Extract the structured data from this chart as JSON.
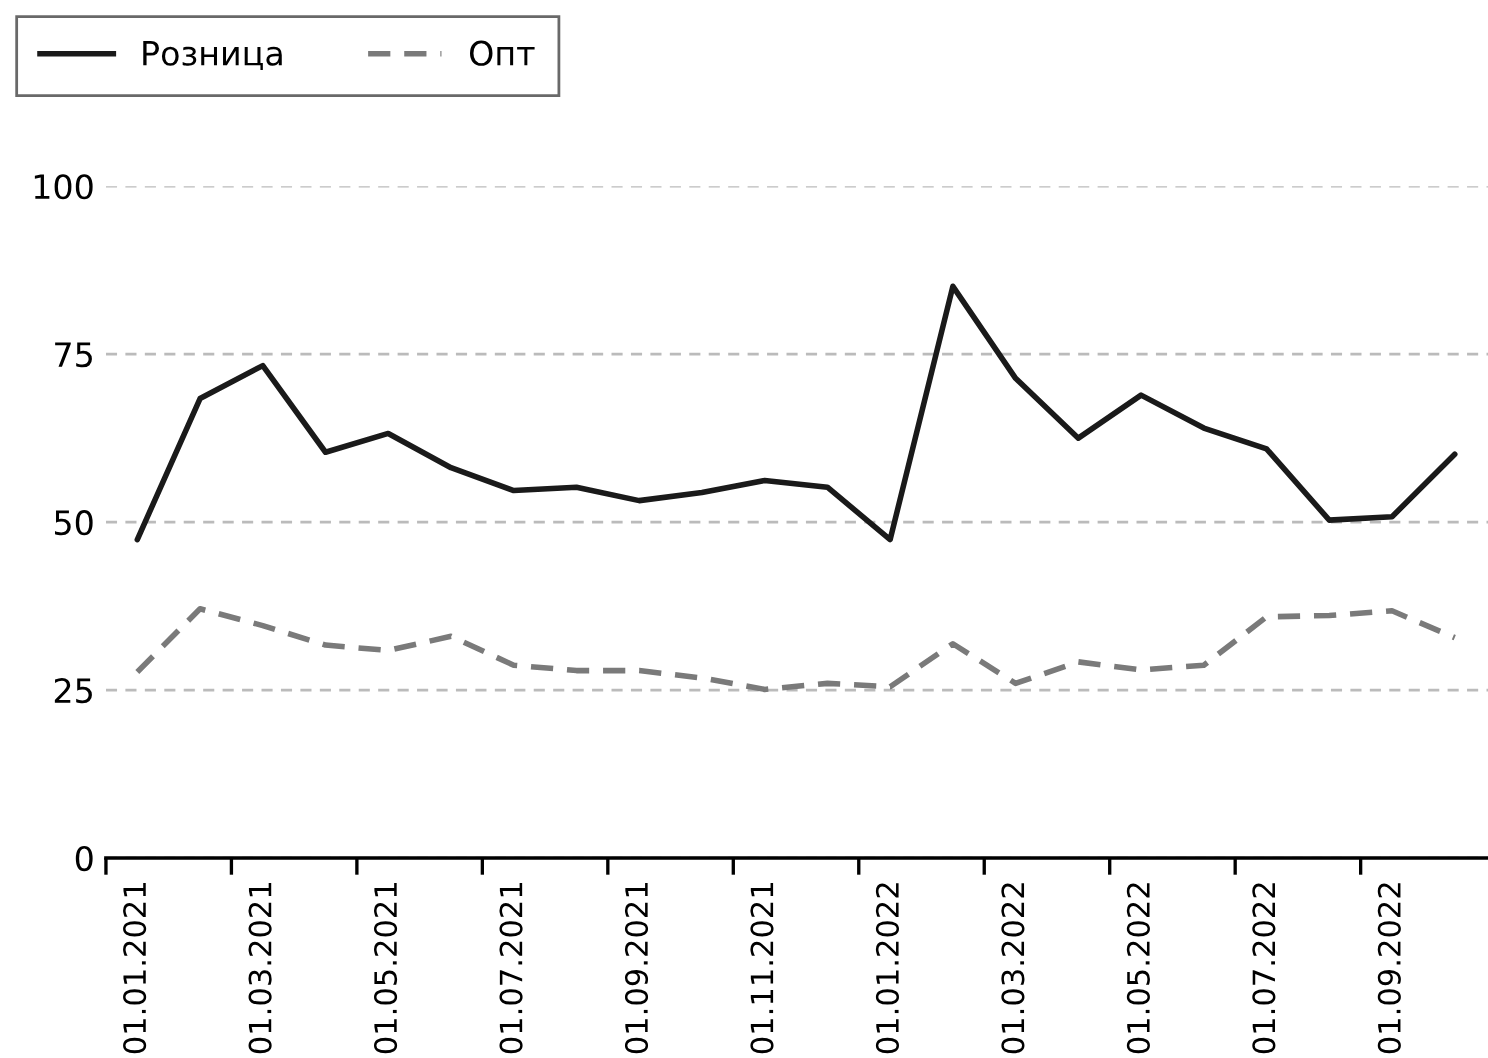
{
  "chart_data": {
    "type": "line",
    "categories": [
      "01.01.2021",
      null,
      "01.03.2021",
      null,
      "01.05.2021",
      null,
      "01.07.2021",
      null,
      "01.09.2021",
      null,
      "01.11.2021",
      null,
      "01.01.2022",
      null,
      "01.03.2022",
      null,
      "01.05.2022",
      null,
      "01.07.2022",
      null,
      "01.09.2022",
      null
    ],
    "series": [
      {
        "name": "Розница",
        "color": "#1a1a1a",
        "line_style": "solid",
        "values": [
          47.4,
          68.4,
          73.3,
          60.4,
          63.2,
          58.1,
          54.7,
          55.2,
          53.2,
          54.4,
          56.2,
          55.2,
          47.4,
          85.1,
          71.4,
          62.5,
          68.9,
          64,
          60.9,
          50.3,
          50.8,
          60.1
        ]
      },
      {
        "name": "Опт",
        "color": "#7a7a7a",
        "line_style": "dashed",
        "values": [
          27.7,
          37.1,
          34.6,
          31.7,
          30.9,
          33,
          28.7,
          27.9,
          27.9,
          26.8,
          25.1,
          26,
          25.5,
          31.9,
          26,
          29.2,
          28,
          28.7,
          35.9,
          36.1,
          36.8,
          32.8
        ]
      }
    ],
    "ylim": [
      0,
      100
    ],
    "yticks": [
      0,
      25,
      50,
      75,
      100
    ],
    "grid": "y",
    "legend": "top left"
  }
}
